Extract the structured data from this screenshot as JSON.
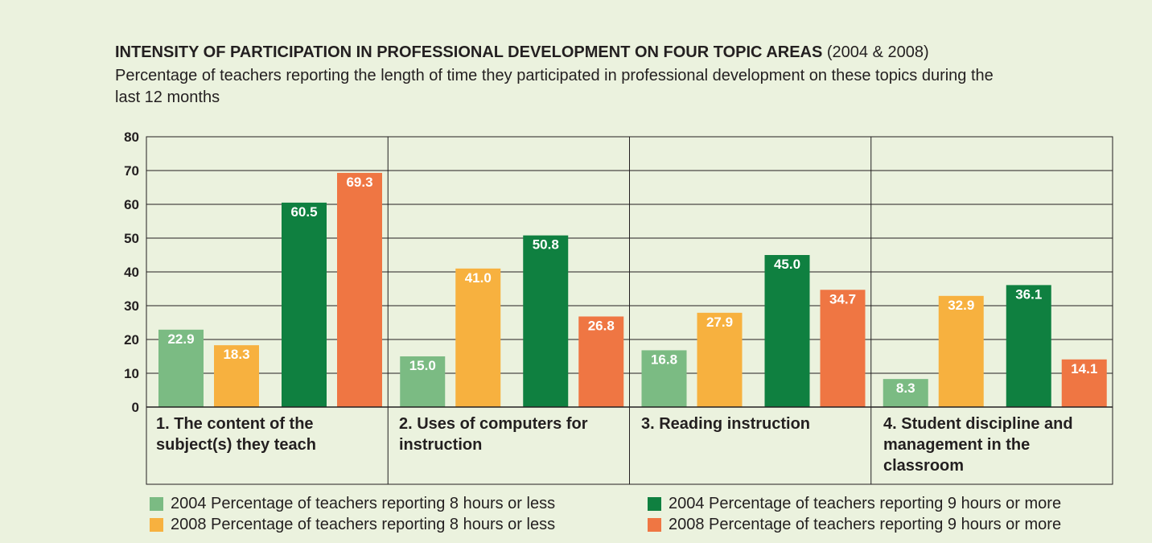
{
  "title": {
    "main": "INTENSITY OF PARTICIPATION IN PROFESSIONAL DEVELOPMENT ON FOUR TOPIC AREAS",
    "suffix": "(2004 & 2008)"
  },
  "subtitle": "Percentage of teachers reporting the length of time they participated in professional development on these topics during the last 12 months",
  "colors": {
    "s2004_low": "#7bbb83",
    "s2008_low": "#f7b13f",
    "s2004_high": "#0f8040",
    "s2008_high": "#ef7643",
    "background": "#ebf2de",
    "line": "#231f20"
  },
  "chart_data": {
    "type": "bar",
    "ylim": [
      0,
      80
    ],
    "yticks": [
      "0",
      "10",
      "20",
      "30",
      "40",
      "50",
      "60",
      "70",
      "80"
    ],
    "grid": true,
    "legend_position": "bottom",
    "categories": [
      "1. The content of the subject(s) they teach",
      "2. Uses of computers for instruction",
      "3. Reading instruction",
      "4. Student discipline and management in the classroom"
    ],
    "series": [
      {
        "name": "2004 Percentage of teachers reporting 8 hours or less",
        "color": "#7bbb83",
        "values": [
          22.9,
          15.0,
          16.8,
          8.3
        ],
        "labels": [
          "22.9",
          "15.0",
          "16.8",
          "8.3"
        ]
      },
      {
        "name": "2008 Percentage of teachers reporting 8 hours or less",
        "color": "#f7b13f",
        "values": [
          18.3,
          41.0,
          27.9,
          32.9
        ],
        "labels": [
          "18.3",
          "41.0",
          "27.9",
          "32.9"
        ]
      },
      {
        "name": "2004 Percentage of teachers reporting 9 hours or more",
        "color": "#0f8040",
        "values": [
          60.5,
          50.8,
          45.0,
          36.1
        ],
        "labels": [
          "60.5",
          "50.8",
          "45.0",
          "36.1"
        ]
      },
      {
        "name": "2008 Percentage of teachers reporting 9 hours or more",
        "color": "#ef7643",
        "values": [
          69.3,
          26.8,
          34.7,
          14.1
        ],
        "labels": [
          "69.3",
          "26.8",
          "34.7",
          "14.1"
        ]
      }
    ]
  }
}
